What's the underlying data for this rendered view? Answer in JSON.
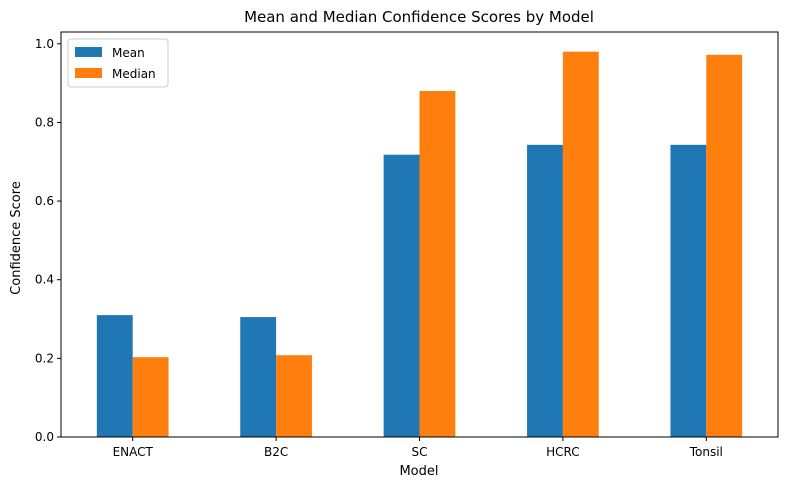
{
  "chart_data": {
    "type": "bar",
    "title": "Mean and Median Confidence Scores by Model",
    "xlabel": "Model",
    "ylabel": "Confidence Score",
    "categories": [
      "ENACT",
      "B2C",
      "SC",
      "HCRC",
      "Tonsil"
    ],
    "series": [
      {
        "name": "Mean",
        "color": "#1f77b4",
        "values": [
          0.31,
          0.305,
          0.718,
          0.743,
          0.743
        ]
      },
      {
        "name": "Median",
        "color": "#ff7f0e",
        "values": [
          0.203,
          0.208,
          0.88,
          0.98,
          0.972
        ]
      }
    ],
    "ylim": [
      0.0,
      1.03
    ],
    "yticks": [
      0.0,
      0.2,
      0.4,
      0.6,
      0.8,
      1.0
    ],
    "ytick_labels": [
      "0.0",
      "0.2",
      "0.4",
      "0.6",
      "0.8",
      "1.0"
    ],
    "grid": false,
    "legend_position": "top-left"
  }
}
